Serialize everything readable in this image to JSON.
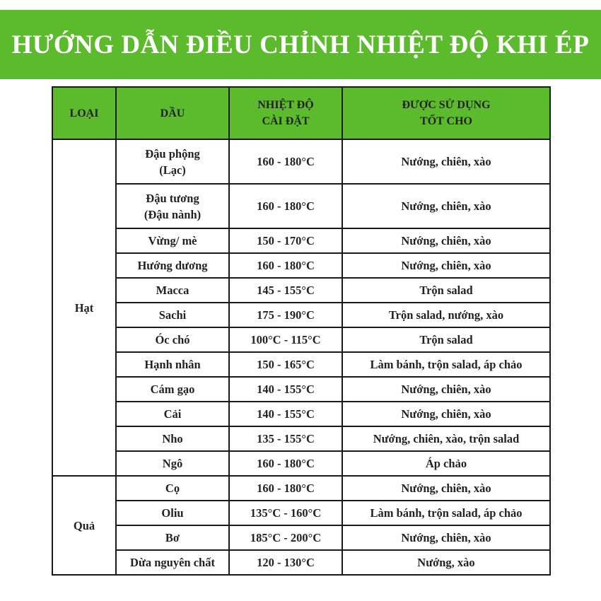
{
  "title": "HƯỚNG DẪN ĐIỀU CHỈNH NHIỆT ĐỘ KHI ÉP",
  "colors": {
    "header_green": "#5cbb2c",
    "border": "#1a1a1a"
  },
  "table": {
    "headers": [
      [
        "LOẠI"
      ],
      [
        "DẦU"
      ],
      [
        "NHIỆT ĐỘ",
        "CÀI ĐẶT"
      ],
      [
        "ĐƯỢC SỬ DỤNG",
        "TỐT CHO"
      ]
    ],
    "groups": [
      {
        "category": "Hạt",
        "rows": [
          {
            "oil": [
              "Đậu phộng",
              "(Lạc)"
            ],
            "temp": "160 - 180°C",
            "use": "Nướng, chiên, xào"
          },
          {
            "oil": [
              "Đậu tương",
              "(Đậu nành)"
            ],
            "temp": "160 - 180°C",
            "use": "Nướng, chiên, xào"
          },
          {
            "oil": [
              "Vừng/ mè"
            ],
            "temp": "150 - 170°C",
            "use": "Nướng, chiên, xào"
          },
          {
            "oil": [
              "Hướng dương"
            ],
            "temp": "160 - 180°C",
            "use": "Nướng, chiên, xào"
          },
          {
            "oil": [
              "Macca"
            ],
            "temp": "145 - 155°C",
            "use": "Trộn salad"
          },
          {
            "oil": [
              "Sachi"
            ],
            "temp": "175 - 190°C",
            "use": "Trộn salad, nướng, xào"
          },
          {
            "oil": [
              "Óc chó"
            ],
            "temp": "100°C - 115°C",
            "use": "Trộn salad"
          },
          {
            "oil": [
              "Hạnh nhân"
            ],
            "temp": "150 - 165°C",
            "use": "Làm bánh, trộn salad, áp chảo"
          },
          {
            "oil": [
              "Cám gạo"
            ],
            "temp": "140 - 155°C",
            "use": "Nướng, chiên, xào"
          },
          {
            "oil": [
              "Cải"
            ],
            "temp": "140 - 155°C",
            "use": "Nướng, chiên, xào"
          },
          {
            "oil": [
              "Nho"
            ],
            "temp": "135 - 155°C",
            "use": "Nướng, chiên, xào, trộn salad"
          },
          {
            "oil": [
              "Ngô"
            ],
            "temp": "160 - 180°C",
            "use": "Áp chảo"
          }
        ]
      },
      {
        "category": "Quả",
        "rows": [
          {
            "oil": [
              "Cọ"
            ],
            "temp": "160 - 180°C",
            "use": "Nướng, chiên, xào"
          },
          {
            "oil": [
              "Oliu"
            ],
            "temp": "135°C - 160°C",
            "use": "Làm bánh, trộn salad, áp chảo"
          },
          {
            "oil": [
              "Bơ"
            ],
            "temp": "185°C - 200°C",
            "use": "Nướng, chiên, xào"
          },
          {
            "oil": [
              "Dừa nguyên chất"
            ],
            "temp": "120 - 130°C",
            "use": "Nướng, xào"
          }
        ]
      }
    ]
  }
}
